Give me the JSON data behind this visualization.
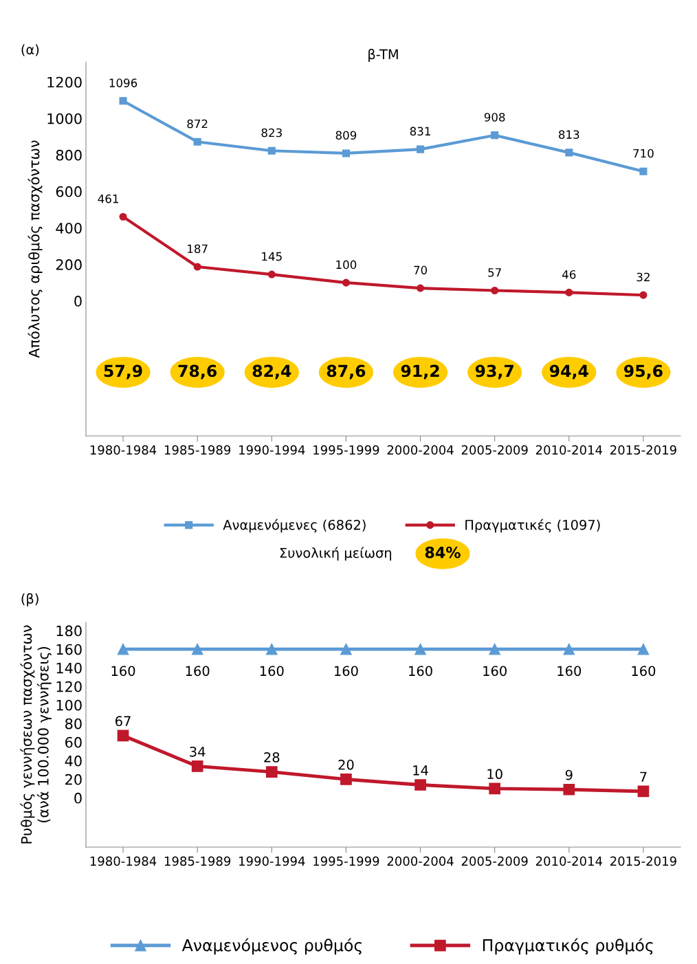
{
  "chart_data": [
    {
      "type": "line",
      "title": "β-TM",
      "ylabel": "Απόλυτος αριθμός πασχόντων",
      "categories": [
        "1980-1984",
        "1985-1989",
        "1990-1994",
        "1995-1999",
        "2000-2004",
        "2005-2009",
        "2010-2014",
        "2015-2019"
      ],
      "series": [
        {
          "name": "Αναμενόμενες (6862)",
          "color": "#5b9bd5",
          "marker": "square",
          "values": [
            1096,
            872,
            823,
            809,
            831,
            908,
            813,
            710
          ]
        },
        {
          "name": "Πραγματικές (1097)",
          "color": "#c0182b",
          "marker": "circle",
          "values": [
            461,
            187,
            145,
            100,
            70,
            57,
            46,
            32
          ]
        }
      ],
      "ylim": [
        -740,
        1310
      ],
      "yticks": [
        0,
        200,
        400,
        600,
        800,
        1000,
        1200
      ],
      "data_labels": true,
      "grid": false,
      "legend": "bottom",
      "annotations": [
        "(α)",
        "Συνολική μείωση",
        "84%",
        "57,9",
        "78,6",
        "82,4",
        "87,6",
        "91,2",
        "93,7",
        "94,4",
        "95,6"
      ]
    },
    {
      "type": "line",
      "ylabel": "Ρυθμός γεννήσεων πασχόντων\n(ανά 100.000 γεννήσεις)",
      "categories": [
        "1980-1984",
        "1985-1989",
        "1990-1994",
        "1995-1999",
        "2000-2004",
        "2005-2009",
        "2010-2014",
        "2015-2019"
      ],
      "series": [
        {
          "name": "Αναμενόμενος ρυθμός",
          "color": "#5b9bd5",
          "marker": "triangle",
          "values": [
            160,
            160,
            160,
            160,
            160,
            160,
            160,
            160
          ]
        },
        {
          "name": "Πραγματικός ρυθμός",
          "color": "#c0182b",
          "marker": "square",
          "values": [
            67,
            34,
            28,
            20,
            14,
            10,
            9,
            7
          ]
        }
      ],
      "ylim": [
        -53,
        189
      ],
      "yticks": [
        0,
        20,
        40,
        60,
        80,
        100,
        120,
        140,
        160,
        180
      ],
      "data_labels": true,
      "grid": false,
      "legend": "bottom",
      "annotations": [
        "(β)"
      ]
    }
  ]
}
